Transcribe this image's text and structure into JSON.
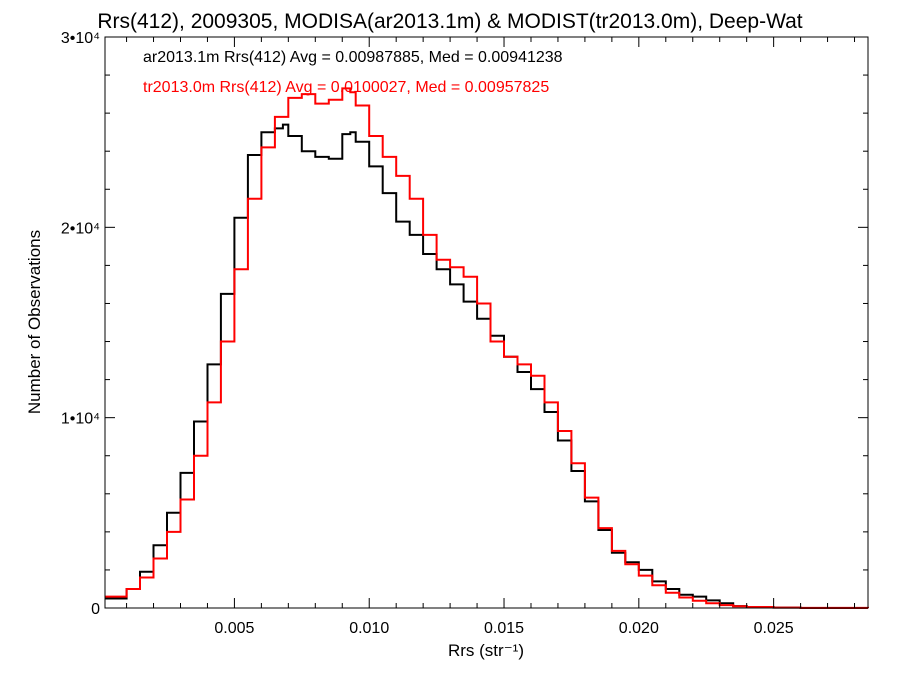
{
  "chart_data": {
    "type": "line",
    "title": "Rrs(412), 2009305, MODISA(ar2013.1m) & MODIST(tr2013.0m), Deep-Wat",
    "xlabel": "Rrs (str⁻¹)",
    "ylabel": "Number of Observations",
    "xlim": [
      0.0002,
      0.0285
    ],
    "ylim": [
      0,
      30000
    ],
    "x_ticks": [
      {
        "value": 0.005,
        "label": "0.005"
      },
      {
        "value": 0.01,
        "label": "0.010"
      },
      {
        "value": 0.015,
        "label": "0.015"
      },
      {
        "value": 0.02,
        "label": "0.020"
      },
      {
        "value": 0.025,
        "label": "0.025"
      }
    ],
    "y_ticks": [
      {
        "value": 0,
        "label": "0"
      },
      {
        "value": 10000,
        "label": "1•10⁴"
      },
      {
        "value": 20000,
        "label": "2•10⁴"
      },
      {
        "value": 30000,
        "label": "3•10⁴"
      }
    ],
    "annotations": [
      {
        "text": "ar2013.1m Rrs(412) Avg = 0.00987885, Med = 0.00941238",
        "color": "#000000"
      },
      {
        "text": "tr2013.0m Rrs(412) Avg = 0.0100027, Med = 0.00957825",
        "color": "#ff0000"
      }
    ],
    "series": [
      {
        "color": "#000000",
        "style": "step",
        "x": [
          0.0002,
          0.001,
          0.0015,
          0.002,
          0.0025,
          0.003,
          0.0035,
          0.004,
          0.0045,
          0.005,
          0.0055,
          0.006,
          0.0065,
          0.0068,
          0.007,
          0.0075,
          0.008,
          0.0085,
          0.009,
          0.0093,
          0.0095,
          0.01,
          0.0105,
          0.011,
          0.0115,
          0.012,
          0.0125,
          0.013,
          0.0135,
          0.014,
          0.0145,
          0.015,
          0.0155,
          0.016,
          0.0165,
          0.017,
          0.0175,
          0.018,
          0.0185,
          0.019,
          0.0195,
          0.02,
          0.0205,
          0.021,
          0.0215,
          0.022,
          0.0225,
          0.023,
          0.0235,
          0.024,
          0.025,
          0.026,
          0.0285
        ],
        "y": [
          500,
          1000,
          1900,
          3300,
          5000,
          7100,
          9800,
          12800,
          16500,
          20500,
          23800,
          25000,
          25200,
          25400,
          24800,
          24000,
          23700,
          23600,
          24900,
          25000,
          24500,
          23200,
          21800,
          20300,
          19600,
          18600,
          17800,
          17000,
          16100,
          15200,
          14300,
          13200,
          12400,
          11500,
          10300,
          8800,
          7200,
          5600,
          4100,
          2900,
          2400,
          2000,
          1400,
          1000,
          700,
          600,
          400,
          250,
          100,
          50,
          20,
          0,
          0
        ]
      },
      {
        "color": "#ff0000",
        "style": "step",
        "x": [
          0.0002,
          0.001,
          0.0015,
          0.002,
          0.0025,
          0.003,
          0.0035,
          0.004,
          0.0045,
          0.005,
          0.0055,
          0.006,
          0.0065,
          0.007,
          0.0075,
          0.008,
          0.0085,
          0.009,
          0.0093,
          0.0095,
          0.01,
          0.0105,
          0.011,
          0.0115,
          0.012,
          0.0125,
          0.013,
          0.0135,
          0.014,
          0.0145,
          0.015,
          0.0155,
          0.016,
          0.0165,
          0.017,
          0.0175,
          0.018,
          0.0185,
          0.019,
          0.0195,
          0.02,
          0.0205,
          0.021,
          0.0215,
          0.022,
          0.0225,
          0.023,
          0.0235,
          0.024,
          0.025,
          0.026,
          0.0285
        ],
        "y": [
          600,
          1000,
          1600,
          2600,
          4000,
          5700,
          8000,
          10800,
          14000,
          17800,
          21500,
          24200,
          25800,
          26800,
          27000,
          26500,
          26700,
          27300,
          27100,
          26400,
          24800,
          23700,
          22700,
          21500,
          19600,
          18300,
          17900,
          17400,
          16000,
          14000,
          13200,
          12800,
          12200,
          10800,
          9300,
          7600,
          5800,
          4200,
          3000,
          2300,
          1700,
          1200,
          800,
          550,
          380,
          250,
          150,
          90,
          50,
          20,
          5,
          0
        ]
      }
    ]
  }
}
